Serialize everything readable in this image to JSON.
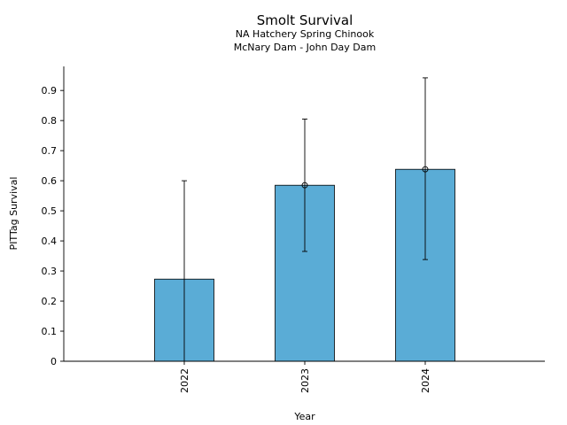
{
  "chart_data": {
    "type": "bar",
    "title": "Smolt Survival",
    "subtitle_lines": [
      "NA Hatchery Spring Chinook",
      "McNary Dam - John Day Dam"
    ],
    "xlabel": "Year",
    "ylabel": "PITTag Survival",
    "categories": [
      "2022",
      "2023",
      "2024"
    ],
    "series": [
      {
        "values": [
          0.273,
          0.585,
          0.638
        ],
        "error_low": [
          0.0,
          0.365,
          0.338
        ],
        "error_high": [
          0.6,
          0.805,
          0.942
        ],
        "point_markers": [
          false,
          true,
          true
        ]
      }
    ],
    "ylim": [
      0,
      0.98
    ],
    "yticks": [
      0,
      0.1,
      0.2,
      0.3,
      0.4,
      0.5,
      0.6,
      0.7,
      0.8,
      0.9
    ],
    "ytick_labels": [
      "0",
      "0.1",
      "0.2",
      "0.3",
      "0.4",
      "0.5",
      "0.6",
      "0.7",
      "0.8",
      "0.9"
    ],
    "grid": false,
    "bar_color": "#5aacd6",
    "edge_color": "#000000"
  }
}
